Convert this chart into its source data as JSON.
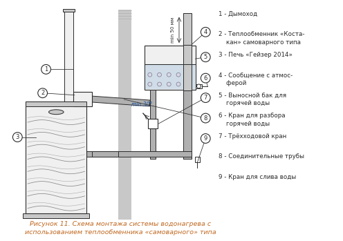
{
  "caption_line1": "Рисунок 11. Схема монтажа системы водонагрева с",
  "caption_line2": "использованием теплообменника «самоварного» типа",
  "legend": [
    "1 - Дымоход",
    "2 - Теплообменник «Коста-\n    кан» самоварного типа",
    "3 - Печь «Гейзер 2014»",
    "4 - Сообщение с атмос-\n    ферой",
    "5 - Выносной бак для\n    горячей воды",
    "6 - Кран для разбора\n    горячей воды",
    "7 - Трёхходовой кран",
    "8 - Соединительные трубы",
    "9 - Кран для слива воды"
  ],
  "bg_color": "#ffffff",
  "lc": "#2a2a2a",
  "gray_fill": "#c8c8c8",
  "light_fill": "#f0f0f0",
  "pipe_fill": "#b0b0b0",
  "water_fill": "#d0dde8",
  "orange_text": "#c8641e",
  "caption_color": "#c06820"
}
